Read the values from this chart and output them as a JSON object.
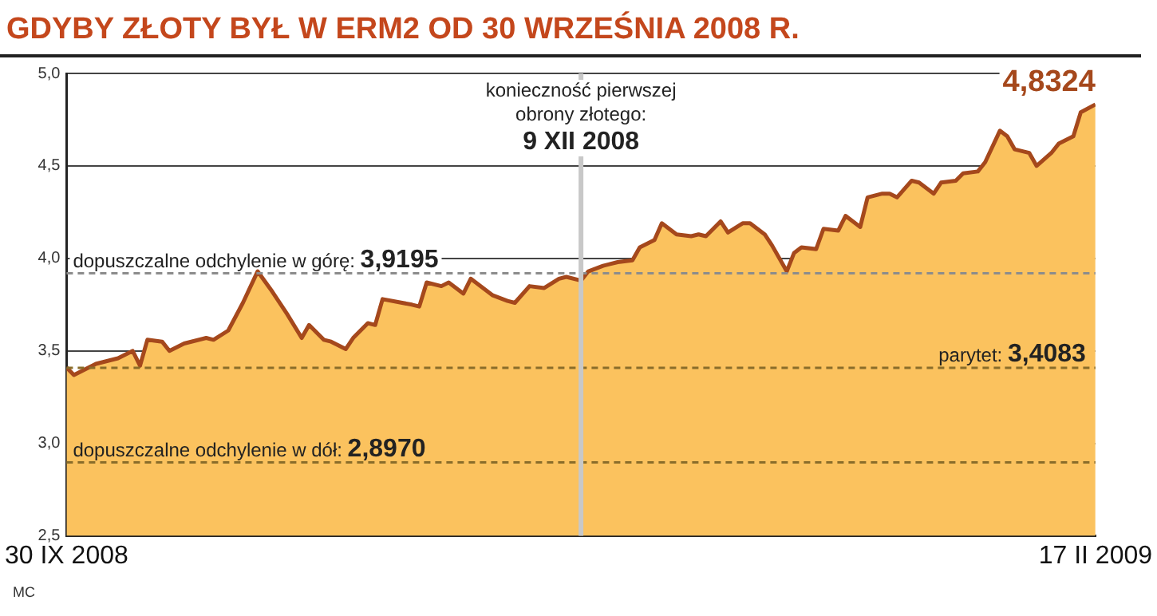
{
  "chart_data": {
    "type": "area",
    "title": "GDYBY ZŁOTY BYŁ W ERM2 OD 30 WRZEŚNIA 2008 R.",
    "x": [
      "2008-09-30",
      "2008-10-01",
      "2008-10-04",
      "2008-10-07",
      "2008-10-09",
      "2008-10-10",
      "2008-10-11",
      "2008-10-13",
      "2008-10-14",
      "2008-10-16",
      "2008-10-19",
      "2008-10-20",
      "2008-10-22",
      "2008-10-24",
      "2008-10-26",
      "2008-10-28",
      "2008-10-30",
      "2008-11-01",
      "2008-11-02",
      "2008-11-04",
      "2008-11-05",
      "2008-11-07",
      "2008-11-08",
      "2008-11-10",
      "2008-11-11",
      "2008-11-12",
      "2008-11-16",
      "2008-11-17",
      "2008-11-18",
      "2008-11-20",
      "2008-11-21",
      "2008-11-23",
      "2008-11-24",
      "2008-11-27",
      "2008-11-29",
      "2008-11-30",
      "2008-12-02",
      "2008-12-04",
      "2008-12-06",
      "2008-12-07",
      "2008-12-09",
      "2008-12-10",
      "2008-12-12",
      "2008-12-14",
      "2008-12-16",
      "2008-12-17",
      "2008-12-19",
      "2008-12-20",
      "2008-12-22",
      "2008-12-24",
      "2008-12-25",
      "2008-12-26",
      "2008-12-28",
      "2008-12-29",
      "2008-12-31",
      "2009-01-01",
      "2009-01-03",
      "2009-01-04",
      "2009-01-06",
      "2009-01-07",
      "2009-01-08",
      "2009-01-10",
      "2009-01-11",
      "2009-01-13",
      "2009-01-14",
      "2009-01-16",
      "2009-01-17",
      "2009-01-19",
      "2009-01-20",
      "2009-01-21",
      "2009-01-23",
      "2009-01-24",
      "2009-01-26",
      "2009-01-27",
      "2009-01-29",
      "2009-01-30",
      "2009-02-01",
      "2009-02-02",
      "2009-02-04",
      "2009-02-05",
      "2009-02-06",
      "2009-02-08",
      "2009-02-09",
      "2009-02-11",
      "2009-02-12",
      "2009-02-14",
      "2009-02-15",
      "2009-02-17"
    ],
    "series": [
      {
        "color": "#a5481c",
        "values": [
          3.41,
          3.37,
          3.43,
          3.46,
          3.5,
          3.42,
          3.56,
          3.55,
          3.5,
          3.54,
          3.57,
          3.56,
          3.61,
          3.76,
          3.93,
          3.82,
          3.7,
          3.57,
          3.64,
          3.56,
          3.55,
          3.51,
          3.57,
          3.65,
          3.64,
          3.78,
          3.75,
          3.74,
          3.87,
          3.85,
          3.87,
          3.81,
          3.89,
          3.8,
          3.77,
          3.76,
          3.85,
          3.84,
          3.89,
          3.9,
          3.88,
          3.93,
          3.96,
          3.98,
          3.99,
          4.06,
          4.1,
          4.19,
          4.13,
          4.12,
          4.13,
          4.12,
          4.2,
          4.14,
          4.19,
          4.19,
          4.13,
          4.07,
          3.93,
          4.03,
          4.06,
          4.05,
          4.16,
          4.15,
          4.23,
          4.17,
          4.33,
          4.35,
          4.35,
          4.33,
          4.42,
          4.41,
          4.35,
          4.41,
          4.42,
          4.46,
          4.47,
          4.52,
          4.69,
          4.66,
          4.59,
          4.57,
          4.5,
          4.57,
          4.62,
          4.66,
          4.79,
          4.8324
        ]
      }
    ],
    "xlim": [
      "2008-09-30",
      "2009-02-17"
    ],
    "xticks": [
      {
        "value": "2008-09-30",
        "label": "30 IX 2008"
      },
      {
        "value": "2009-02-17",
        "label": "17 II 2009"
      }
    ],
    "ylim": [
      2.5,
      5.0
    ],
    "yticks": [
      {
        "value": 2.5,
        "label": "2,5"
      },
      {
        "value": 3.0,
        "label": "3,0"
      },
      {
        "value": 3.5,
        "label": "3,5"
      },
      {
        "value": 4.0,
        "label": "4,0"
      },
      {
        "value": 4.5,
        "label": "4,5"
      },
      {
        "value": 5.0,
        "label": "5,0"
      }
    ],
    "grid": "y",
    "legend": false,
    "marker": "none",
    "line_style": "solid",
    "ref_lines": [
      {
        "axis": "y",
        "value": 3.9195,
        "label": "dopuszczalne odchylenie w górę: 3,9195",
        "color": "#8c8c8c",
        "line_style": "dashed"
      },
      {
        "axis": "y",
        "value": 3.4083,
        "label": "parytet: 3,4083",
        "color": "#8a6d2a",
        "line_style": "dashed"
      },
      {
        "axis": "y",
        "value": 2.897,
        "label": "dopuszczalne odchylenie w dół: 2,8970",
        "color": "#8a6d2a",
        "line_style": "dashed"
      },
      {
        "axis": "x",
        "value": "2008-12-09",
        "label": "konieczność pierwszej\nobrony złotego:\n9 XII 2008",
        "color": "#c8c8c8",
        "line_style": "solid"
      }
    ],
    "annotations": [
      {
        "text": "4,8324",
        "x": "2009-02-17",
        "y": 4.8324
      },
      "MC"
    ]
  }
}
